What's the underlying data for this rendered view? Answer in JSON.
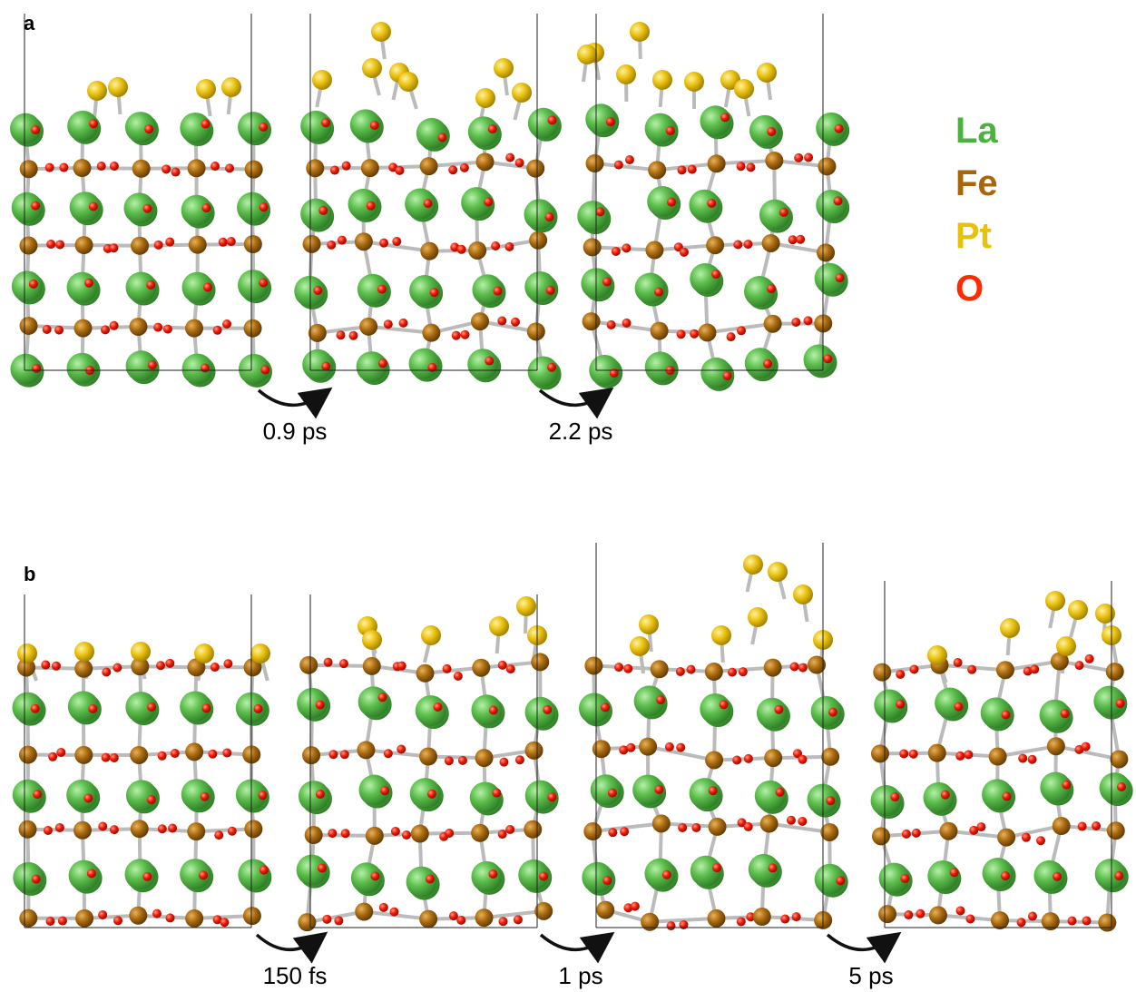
{
  "panels": [
    {
      "label": "a",
      "steps": [
        "0.9 ps",
        "2.2 ps"
      ]
    },
    {
      "label": "b",
      "steps": [
        "150 fs",
        "1 ps",
        "5 ps"
      ]
    }
  ],
  "legend": [
    "La",
    "Fe",
    "Pt",
    "O"
  ]
}
